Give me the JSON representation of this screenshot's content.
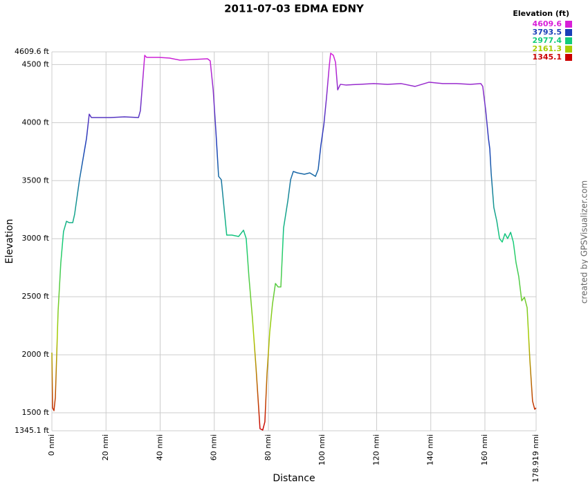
{
  "chart_data": {
    "type": "line",
    "title": "2011-07-03 EDMA EDNY",
    "x_label": "Distance",
    "y_label": "Elevation",
    "credit": "created by GPSVisualizer.com",
    "xlim": [
      0,
      178.919
    ],
    "ylim": [
      1345.1,
      4609.6
    ],
    "grid": true,
    "xticks": [
      {
        "value": 0,
        "label": "0 nmi"
      },
      {
        "value": 20,
        "label": "20 nmi"
      },
      {
        "value": 40,
        "label": "40 nmi"
      },
      {
        "value": 60,
        "label": "60 nmi"
      },
      {
        "value": 80,
        "label": "80 nmi"
      },
      {
        "value": 100,
        "label": "100 nmi"
      },
      {
        "value": 120,
        "label": "120 nmi"
      },
      {
        "value": 140,
        "label": "140 nmi"
      },
      {
        "value": 160,
        "label": "160 nmi"
      },
      {
        "value": 178.919,
        "label": "178.919 nmi"
      }
    ],
    "yticks": [
      {
        "value": 1345.1,
        "label": "1345.1 ft"
      },
      {
        "value": 1500,
        "label": "1500 ft"
      },
      {
        "value": 2000,
        "label": "2000 ft"
      },
      {
        "value": 2500,
        "label": "2500 ft"
      },
      {
        "value": 3000,
        "label": "3000 ft"
      },
      {
        "value": 3500,
        "label": "3500 ft"
      },
      {
        "value": 4000,
        "label": "4000 ft"
      },
      {
        "value": 4500,
        "label": "4500 ft"
      },
      {
        "value": 4609.6,
        "label": "4609.6 ft"
      }
    ],
    "color_scale": {
      "title": "Elevation (ft)",
      "stops": [
        {
          "value": 4609.6,
          "color": "#d81ed8"
        },
        {
          "value": 3793.5,
          "color": "#1a3fb8"
        },
        {
          "value": 2977.4,
          "color": "#12cc7a"
        },
        {
          "value": 2161.3,
          "color": "#a8cc00"
        },
        {
          "value": 1345.1,
          "color": "#cc0000"
        }
      ]
    },
    "x": [
      0,
      0.26,
      0.77,
      1.28,
      2.3,
      3.3,
      4.3,
      5.4,
      6.4,
      7.7,
      8.4,
      10.2,
      11.5,
      12.8,
      13.8,
      14.6,
      16.6,
      21.7,
      26.8,
      32.0,
      32.7,
      33.7,
      34.3,
      35.0,
      39.6,
      43.5,
      47.3,
      52.4,
      57.5,
      58.5,
      59.6,
      60.6,
      61.6,
      62.6,
      63.6,
      64.6,
      66.5,
      69.0,
      70.8,
      71.8,
      72.8,
      74.1,
      75.4,
      76.4,
      76.9,
      77.9,
      78.7,
      79.5,
      80.5,
      81.5,
      82.6,
      83.6,
      84.6,
      85.6,
      87.2,
      88.2,
      89.2,
      90.7,
      93.3,
      95.3,
      97.4,
      98.4,
      99.4,
      100.5,
      101.5,
      102.5,
      103.0,
      104.0,
      104.8,
      105.6,
      106.6,
      108.6,
      113.7,
      118.9,
      124.0,
      129.1,
      134.2,
      139.3,
      144.4,
      149.5,
      154.6,
      158.5,
      159.2,
      160.3,
      161.3,
      161.8,
      162.3,
      163.3,
      164.4,
      165.4,
      166.4,
      167.4,
      168.4,
      169.5,
      170.5,
      171.5,
      172.5,
      173.6,
      174.6,
      175.6,
      176.6,
      177.6,
      178.4,
      178.9
    ],
    "values": [
      2018,
      1542,
      1518,
      1631,
      2376,
      2793,
      3061,
      3150,
      3138,
      3138,
      3210,
      3508,
      3686,
      3865,
      4073,
      4044,
      4044,
      4044,
      4050,
      4044,
      4103,
      4401,
      4580,
      4562,
      4562,
      4556,
      4538,
      4544,
      4550,
      4532,
      4282,
      3925,
      3537,
      3508,
      3269,
      3031,
      3031,
      3019,
      3073,
      3001,
      2674,
      2316,
      1899,
      1542,
      1363,
      1351,
      1422,
      1840,
      2197,
      2435,
      2614,
      2584,
      2584,
      3091,
      3329,
      3508,
      3579,
      3567,
      3555,
      3567,
      3537,
      3597,
      3805,
      3984,
      4222,
      4490,
      4598,
      4580,
      4520,
      4282,
      4330,
      4324,
      4330,
      4336,
      4330,
      4336,
      4312,
      4348,
      4336,
      4336,
      4330,
      4336,
      4312,
      4103,
      3865,
      3775,
      3567,
      3269,
      3150,
      3001,
      2971,
      3043,
      3001,
      3055,
      2971,
      2793,
      2674,
      2465,
      2495,
      2406,
      1959,
      1601,
      1530,
      1542
    ]
  }
}
